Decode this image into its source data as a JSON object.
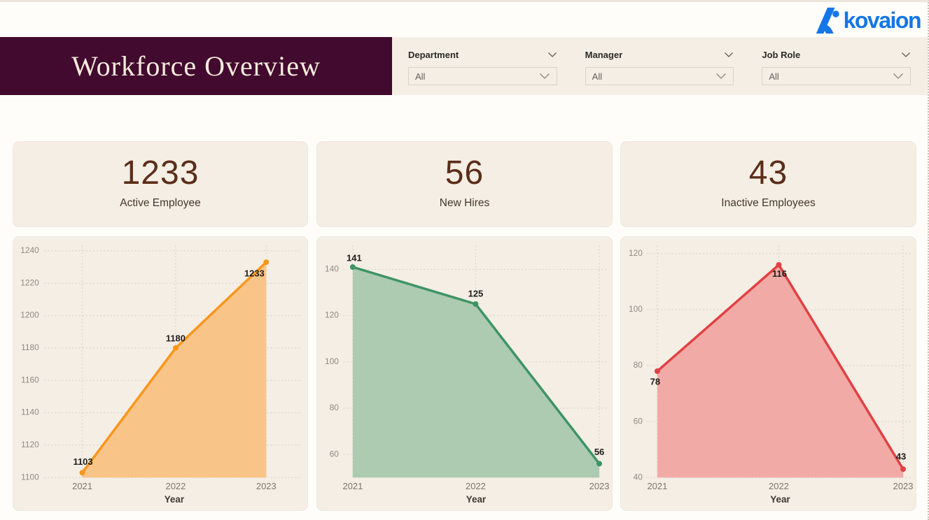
{
  "brand": {
    "name": "kovaion",
    "color": "#1476E8"
  },
  "header": {
    "title": "Workforce Overview",
    "bg_color": "#420A2E",
    "text_color": "#F6ECDC"
  },
  "filters": {
    "items": [
      {
        "label": "Department",
        "value": "All"
      },
      {
        "label": "Manager",
        "value": "All"
      },
      {
        "label": "Job Role",
        "value": "All"
      }
    ]
  },
  "kpis": {
    "number_color": "#5B2D18",
    "items": [
      {
        "value": "1233",
        "label": "Active Employee"
      },
      {
        "value": "56",
        "label": "New Hires"
      },
      {
        "value": "43",
        "label": "Inactive Employees"
      }
    ]
  },
  "chart_data": [
    {
      "type": "area",
      "categories": [
        "2021",
        "2022",
        "2023"
      ],
      "values": [
        1103,
        1180,
        1233
      ],
      "xlabel": "Year",
      "ylim": [
        1100,
        1240
      ],
      "yticks": [
        1100,
        1120,
        1140,
        1160,
        1180,
        1200,
        1220,
        1240
      ],
      "grid": "dotted",
      "data_labels_shown": true,
      "line_color": "#F8961D",
      "fill_color": "#F9C488"
    },
    {
      "type": "area",
      "categories": [
        "2021",
        "2022",
        "2023"
      ],
      "values": [
        141,
        125,
        56
      ],
      "xlabel": "Year",
      "ylim": [
        50,
        148
      ],
      "yticks": [
        60,
        80,
        100,
        120,
        140
      ],
      "grid": "dotted",
      "data_labels_shown": true,
      "line_color": "#3E9463",
      "fill_color": "#ACCBB1"
    },
    {
      "type": "area",
      "categories": [
        "2021",
        "2022",
        "2023"
      ],
      "values": [
        78,
        116,
        43
      ],
      "xlabel": "Year",
      "ylim": [
        40,
        121
      ],
      "yticks": [
        40,
        60,
        80,
        100,
        120
      ],
      "grid": "dotted",
      "data_labels_shown": true,
      "line_color": "#E04143",
      "fill_color": "#F2AAA6"
    }
  ]
}
